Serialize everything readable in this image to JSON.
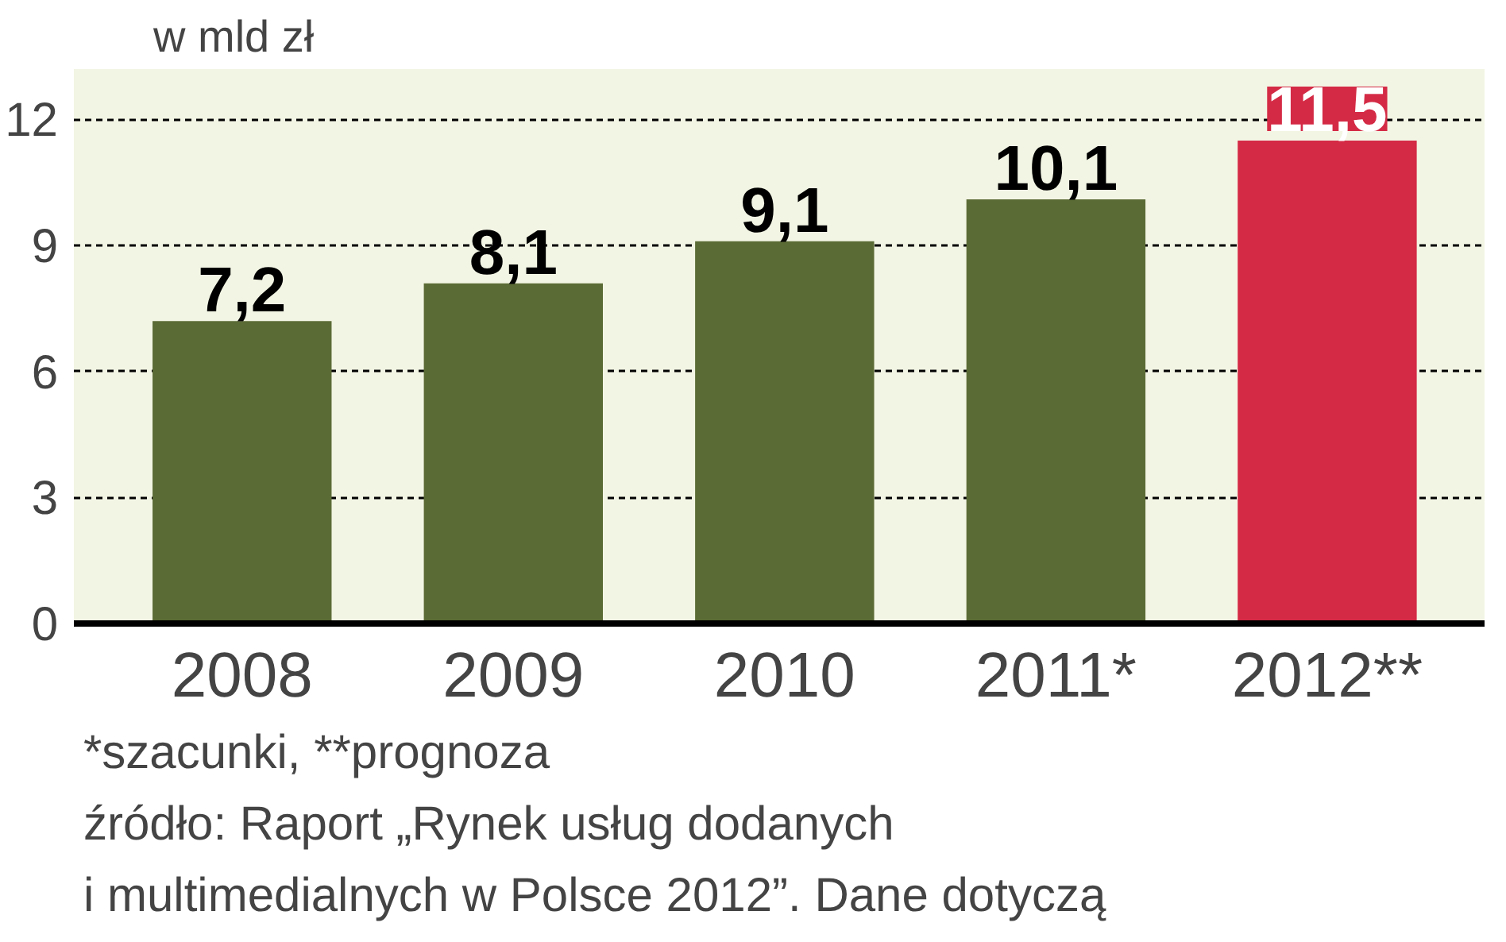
{
  "chart_data": {
    "type": "bar",
    "title": "w mld zł",
    "categories": [
      "2008",
      "2009",
      "2010",
      "2011*",
      "2012**"
    ],
    "values": [
      7.2,
      8.1,
      9.1,
      10.1,
      11.5
    ],
    "colors": [
      "#5b6b35",
      "#5b6b35",
      "#5b6b35",
      "#5b6b35",
      "#d42a45"
    ],
    "value_labels": [
      "7,2",
      "8,1",
      "9,1",
      "10,1",
      "11,5"
    ],
    "ylim": [
      0,
      13.2
    ],
    "yticks": [
      0,
      3,
      6,
      9,
      12
    ],
    "grid": "y",
    "annotations": [
      "*szacunki, **prognoza",
      "źródło: Raport „Rynek usług dodanych",
      "i multimedialnych w Polsce 2012”. Dane dotyczą"
    ]
  }
}
